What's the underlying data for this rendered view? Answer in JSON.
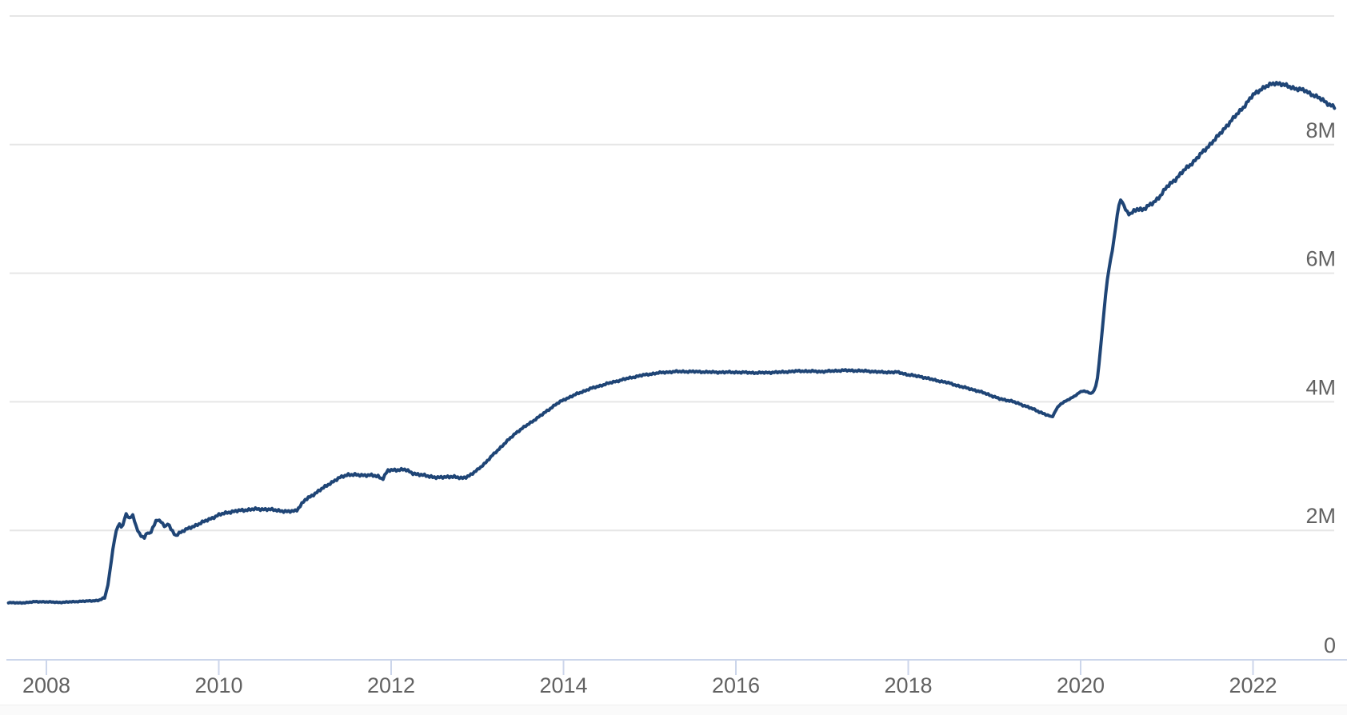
{
  "page": {
    "background": "#ffffff",
    "bottom_strip_color": "#fafafa"
  },
  "colors": {
    "line": "#1f4576",
    "gridline": "#e6e6e6",
    "axis_line": "#ccd6eb",
    "tick": "#ccd6eb",
    "label_text": "#616161"
  },
  "chart_data": {
    "type": "line",
    "title": "",
    "grid": "horizontal",
    "legend": "none",
    "x_axis": {
      "range": [
        2007.555,
        2023.09
      ],
      "ticks": [
        2008,
        2010,
        2012,
        2014,
        2016,
        2018,
        2020,
        2022
      ],
      "tick_labels": [
        "2008",
        "2010",
        "2012",
        "2014",
        "2016",
        "2018",
        "2020",
        "2022"
      ],
      "labels_position": "bottom"
    },
    "y_axis": {
      "range": [
        0,
        10
      ],
      "unit_suffix": "M",
      "ticks": [
        0,
        2,
        4,
        6,
        8,
        10
      ],
      "tick_labels": [
        "0",
        "2M",
        "4M",
        "6M",
        "8M",
        ""
      ],
      "labels_position": "right-inside"
    },
    "series": [
      {
        "name": "",
        "color": "#1f4576",
        "line_width": 4,
        "sampling": "weekly",
        "points": [
          [
            2007.56,
            0.88
          ],
          [
            2007.7,
            0.87
          ],
          [
            2007.85,
            0.89
          ],
          [
            2008.0,
            0.89
          ],
          [
            2008.15,
            0.88
          ],
          [
            2008.3,
            0.89
          ],
          [
            2008.45,
            0.9
          ],
          [
            2008.6,
            0.91
          ],
          [
            2008.68,
            0.95
          ],
          [
            2008.72,
            1.2
          ],
          [
            2008.76,
            1.6
          ],
          [
            2008.8,
            1.95
          ],
          [
            2008.84,
            2.1
          ],
          [
            2008.88,
            2.04
          ],
          [
            2008.92,
            2.26
          ],
          [
            2008.96,
            2.19
          ],
          [
            2009.0,
            2.24
          ],
          [
            2009.04,
            2.06
          ],
          [
            2009.09,
            1.92
          ],
          [
            2009.13,
            1.88
          ],
          [
            2009.17,
            1.98
          ],
          [
            2009.2,
            1.93
          ],
          [
            2009.24,
            2.06
          ],
          [
            2009.28,
            2.16
          ],
          [
            2009.33,
            2.15
          ],
          [
            2009.38,
            2.04
          ],
          [
            2009.41,
            2.12
          ],
          [
            2009.45,
            2.0
          ],
          [
            2009.5,
            1.92
          ],
          [
            2009.55,
            1.97
          ],
          [
            2009.6,
            2.0
          ],
          [
            2009.7,
            2.06
          ],
          [
            2009.8,
            2.12
          ],
          [
            2009.9,
            2.18
          ],
          [
            2010.0,
            2.24
          ],
          [
            2010.1,
            2.28
          ],
          [
            2010.25,
            2.31
          ],
          [
            2010.4,
            2.33
          ],
          [
            2010.55,
            2.33
          ],
          [
            2010.7,
            2.31
          ],
          [
            2010.8,
            2.29
          ],
          [
            2010.9,
            2.31
          ],
          [
            2011.0,
            2.47
          ],
          [
            2011.1,
            2.56
          ],
          [
            2011.2,
            2.65
          ],
          [
            2011.3,
            2.74
          ],
          [
            2011.42,
            2.83
          ],
          [
            2011.5,
            2.87
          ],
          [
            2011.62,
            2.86
          ],
          [
            2011.75,
            2.86
          ],
          [
            2011.85,
            2.84
          ],
          [
            2011.9,
            2.8
          ],
          [
            2011.96,
            2.93
          ],
          [
            2012.05,
            2.94
          ],
          [
            2012.15,
            2.95
          ],
          [
            2012.25,
            2.89
          ],
          [
            2012.4,
            2.85
          ],
          [
            2012.55,
            2.82
          ],
          [
            2012.7,
            2.84
          ],
          [
            2012.82,
            2.81
          ],
          [
            2012.92,
            2.86
          ],
          [
            2013.0,
            2.94
          ],
          [
            2013.1,
            3.06
          ],
          [
            2013.2,
            3.2
          ],
          [
            2013.3,
            3.33
          ],
          [
            2013.45,
            3.52
          ],
          [
            2013.6,
            3.66
          ],
          [
            2013.75,
            3.8
          ],
          [
            2013.9,
            3.95
          ],
          [
            2014.0,
            4.03
          ],
          [
            2014.15,
            4.12
          ],
          [
            2014.3,
            4.2
          ],
          [
            2014.5,
            4.28
          ],
          [
            2014.7,
            4.35
          ],
          [
            2014.9,
            4.41
          ],
          [
            2015.1,
            4.45
          ],
          [
            2015.3,
            4.47
          ],
          [
            2015.5,
            4.47
          ],
          [
            2015.75,
            4.46
          ],
          [
            2016.0,
            4.46
          ],
          [
            2016.25,
            4.45
          ],
          [
            2016.5,
            4.46
          ],
          [
            2016.75,
            4.48
          ],
          [
            2017.0,
            4.47
          ],
          [
            2017.25,
            4.49
          ],
          [
            2017.5,
            4.48
          ],
          [
            2017.7,
            4.46
          ],
          [
            2017.88,
            4.46
          ],
          [
            2018.0,
            4.42
          ],
          [
            2018.15,
            4.39
          ],
          [
            2018.3,
            4.34
          ],
          [
            2018.45,
            4.3
          ],
          [
            2018.6,
            4.24
          ],
          [
            2018.75,
            4.19
          ],
          [
            2018.9,
            4.13
          ],
          [
            2019.05,
            4.05
          ],
          [
            2019.2,
            4.01
          ],
          [
            2019.37,
            3.93
          ],
          [
            2019.53,
            3.84
          ],
          [
            2019.62,
            3.79
          ],
          [
            2019.67,
            3.76
          ],
          [
            2019.72,
            3.89
          ],
          [
            2019.76,
            3.96
          ],
          [
            2019.8,
            3.99
          ],
          [
            2019.84,
            4.02
          ],
          [
            2019.88,
            4.05
          ],
          [
            2019.93,
            4.09
          ],
          [
            2019.98,
            4.14
          ],
          [
            2020.03,
            4.17
          ],
          [
            2020.08,
            4.15
          ],
          [
            2020.12,
            4.13
          ],
          [
            2020.16,
            4.18
          ],
          [
            2020.19,
            4.31
          ],
          [
            2020.22,
            4.67
          ],
          [
            2020.26,
            5.25
          ],
          [
            2020.3,
            5.81
          ],
          [
            2020.33,
            6.08
          ],
          [
            2020.37,
            6.37
          ],
          [
            2020.4,
            6.66
          ],
          [
            2020.44,
            7.04
          ],
          [
            2020.47,
            7.16
          ],
          [
            2020.5,
            7.05
          ],
          [
            2020.54,
            6.95
          ],
          [
            2020.58,
            6.92
          ],
          [
            2020.62,
            6.96
          ],
          [
            2020.66,
            7.0
          ],
          [
            2020.72,
            6.99
          ],
          [
            2020.78,
            7.04
          ],
          [
            2020.85,
            7.1
          ],
          [
            2020.92,
            7.2
          ],
          [
            2021.0,
            7.34
          ],
          [
            2021.1,
            7.46
          ],
          [
            2021.2,
            7.6
          ],
          [
            2021.3,
            7.72
          ],
          [
            2021.4,
            7.86
          ],
          [
            2021.5,
            8.0
          ],
          [
            2021.6,
            8.14
          ],
          [
            2021.7,
            8.3
          ],
          [
            2021.8,
            8.45
          ],
          [
            2021.9,
            8.6
          ],
          [
            2022.0,
            8.77
          ],
          [
            2022.1,
            8.87
          ],
          [
            2022.18,
            8.92
          ],
          [
            2022.26,
            8.96
          ],
          [
            2022.33,
            8.94
          ],
          [
            2022.42,
            8.9
          ],
          [
            2022.5,
            8.87
          ],
          [
            2022.6,
            8.84
          ],
          [
            2022.7,
            8.77
          ],
          [
            2022.8,
            8.7
          ],
          [
            2022.88,
            8.63
          ],
          [
            2022.96,
            8.57
          ]
        ],
        "noise_eras": [
          [
            2007.5,
            2008.65,
            0.008
          ],
          [
            2008.65,
            2009.0,
            0.015
          ],
          [
            2009.0,
            2013.0,
            0.022
          ],
          [
            2013.0,
            2019.6,
            0.016
          ],
          [
            2019.6,
            2020.5,
            0.008
          ],
          [
            2020.5,
            2023.0,
            0.032
          ]
        ]
      }
    ]
  }
}
